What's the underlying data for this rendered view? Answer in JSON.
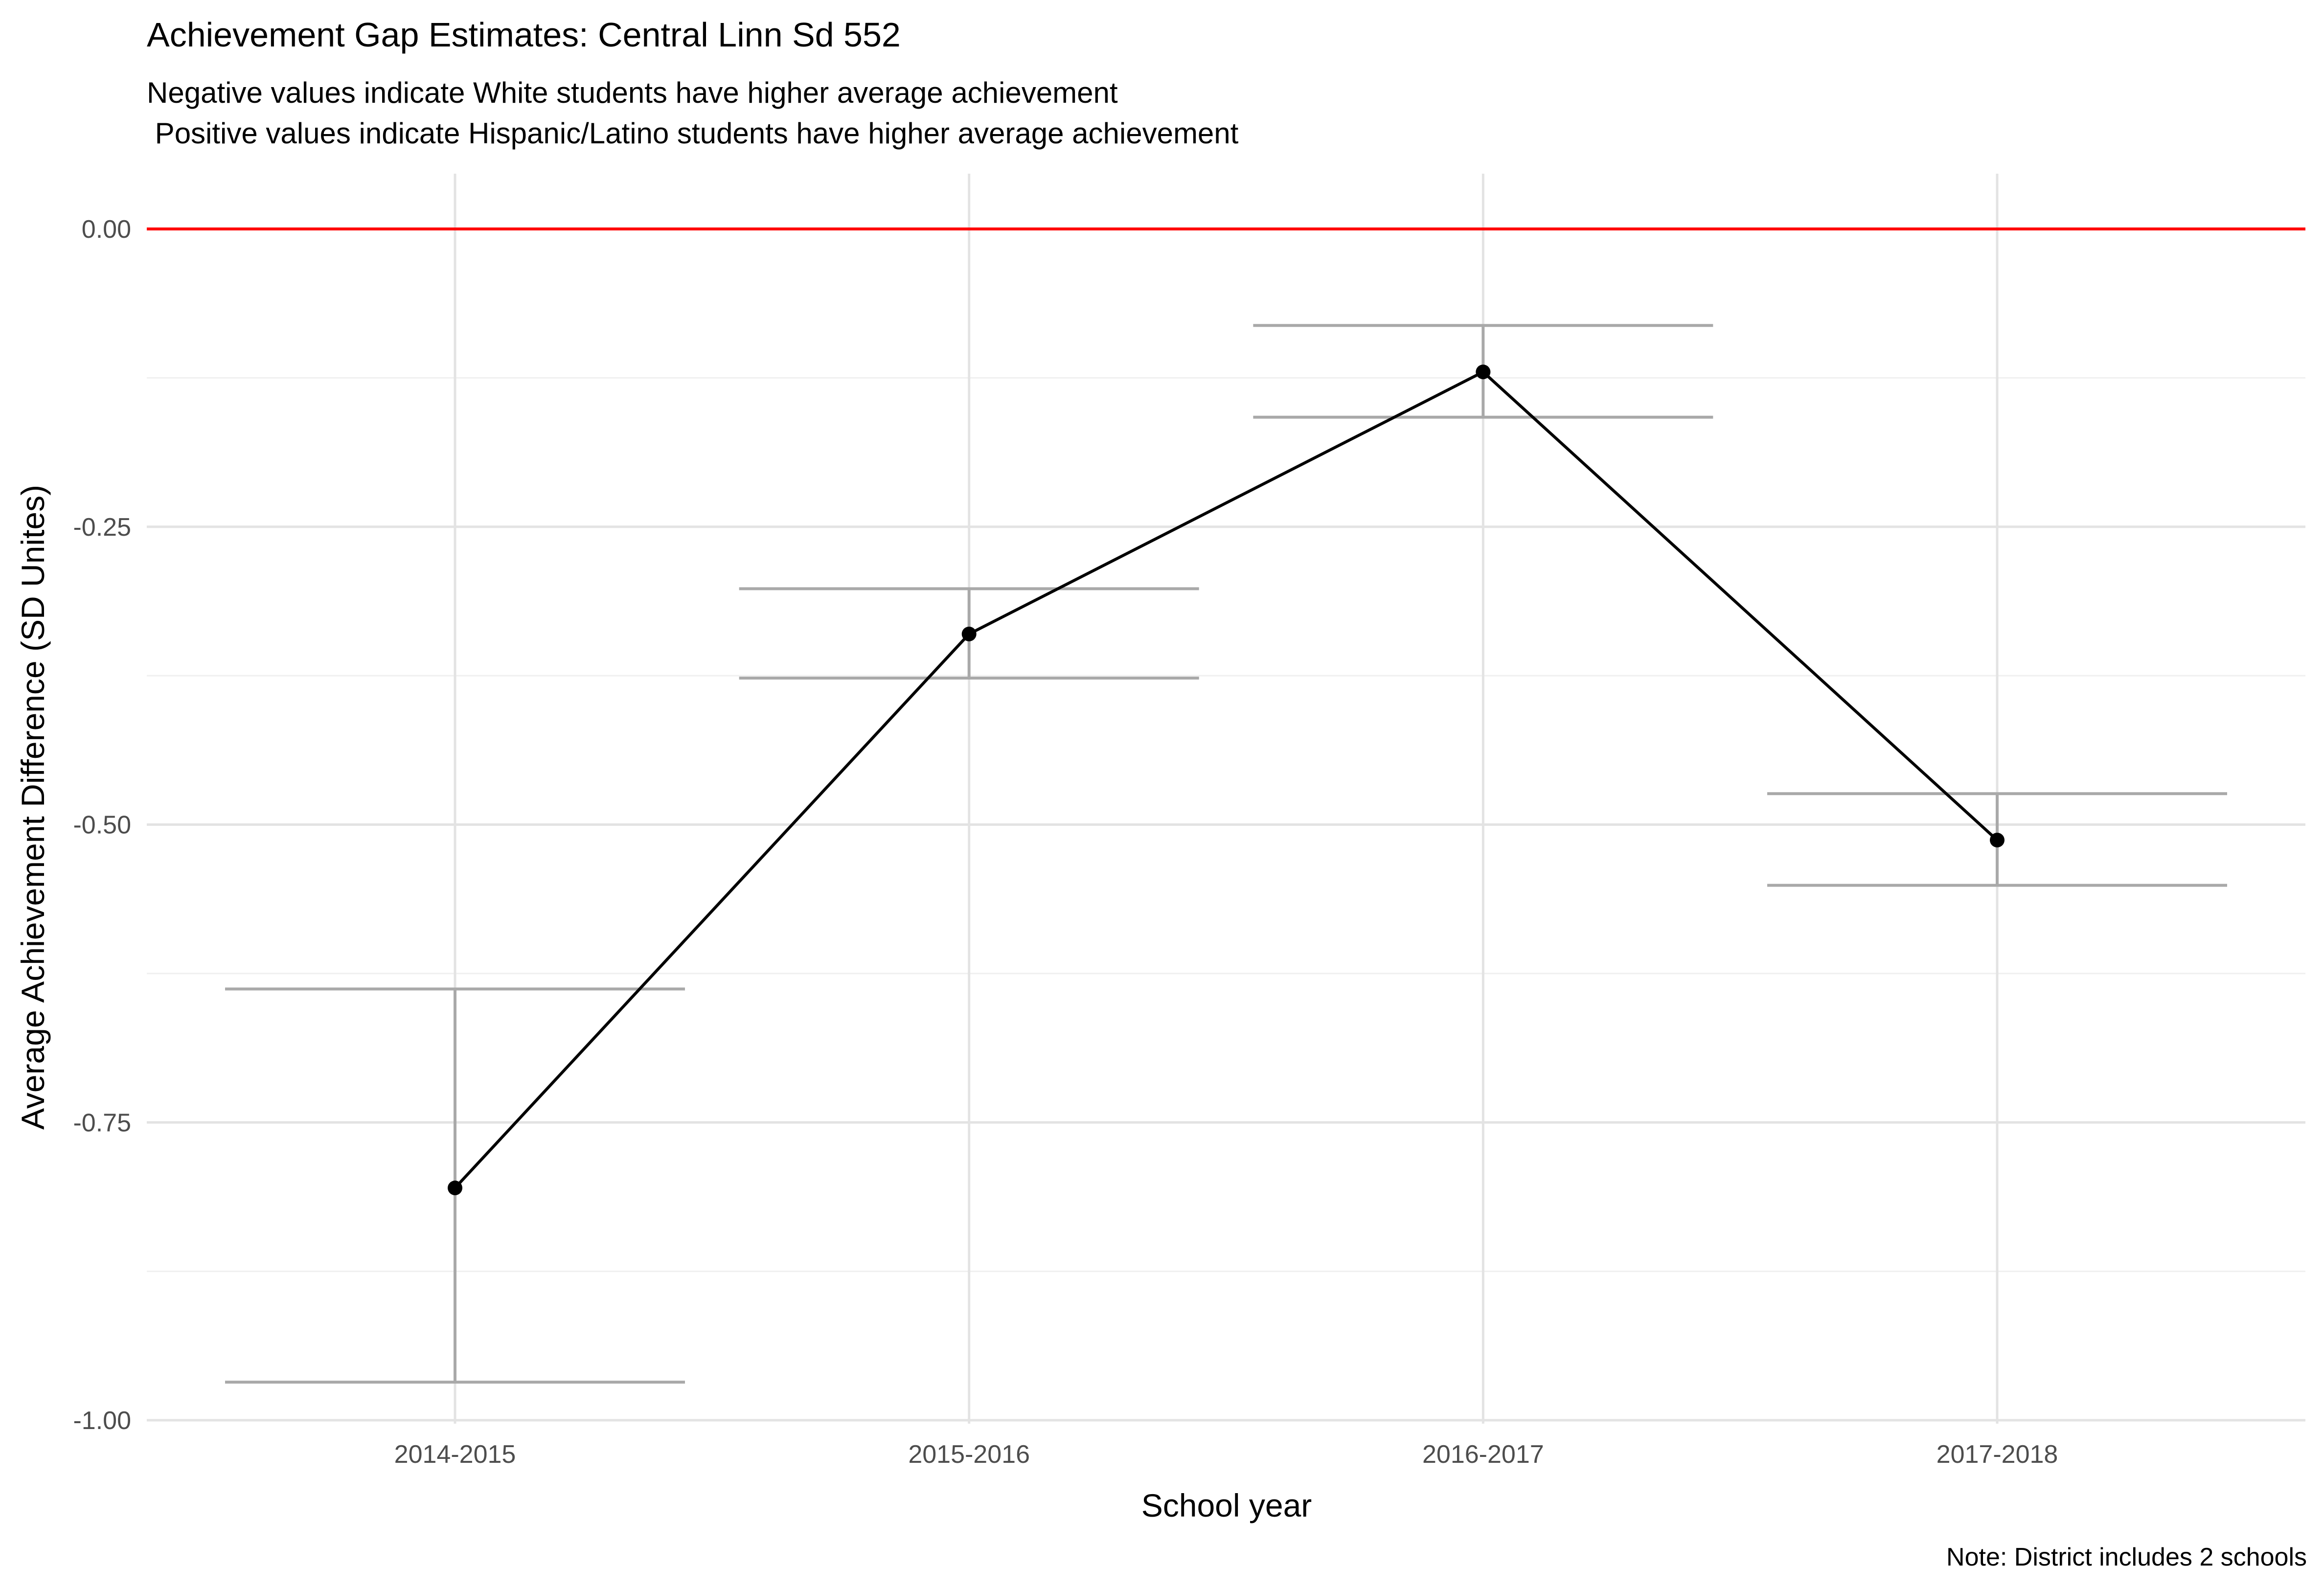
{
  "chart_data": {
    "type": "line",
    "title": "Achievement Gap Estimates: Central Linn Sd 552",
    "subtitle_lines": [
      "Negative values indicate White students have higher average achievement",
      " Positive values indicate Hispanic/Latino students have higher average achievement"
    ],
    "xlabel": "School year",
    "ylabel": "Average Achievement Difference (SD Unites)",
    "caption": "Note: District includes 2 schools",
    "categories": [
      "2014-2015",
      "2015-2016",
      "2016-2017",
      "2017-2018"
    ],
    "values": [
      -0.805,
      -0.34,
      -0.12,
      -0.513
    ],
    "error_bars": [
      {
        "lower": -0.968,
        "upper": -0.638
      },
      {
        "lower": -0.377,
        "upper": -0.302
      },
      {
        "lower": -0.158,
        "upper": -0.081
      },
      {
        "lower": -0.551,
        "upper": -0.474
      }
    ],
    "reference_line": 0,
    "ylim": [
      -1.0,
      0.0
    ],
    "y_ticks": [
      0.0,
      -0.25,
      -0.5,
      -0.75,
      -1.0
    ],
    "y_tick_labels": [
      "0.00",
      "-0.25",
      "-0.50",
      "-0.75",
      "-1.00"
    ],
    "grid": true,
    "colors": {
      "line": "#000000",
      "points": "#000000",
      "error_bars": "#a9a9a9",
      "reference_line": "#ff0000",
      "grid_major": "#e3e3e3",
      "grid_minor": "#f0f0f0"
    }
  }
}
